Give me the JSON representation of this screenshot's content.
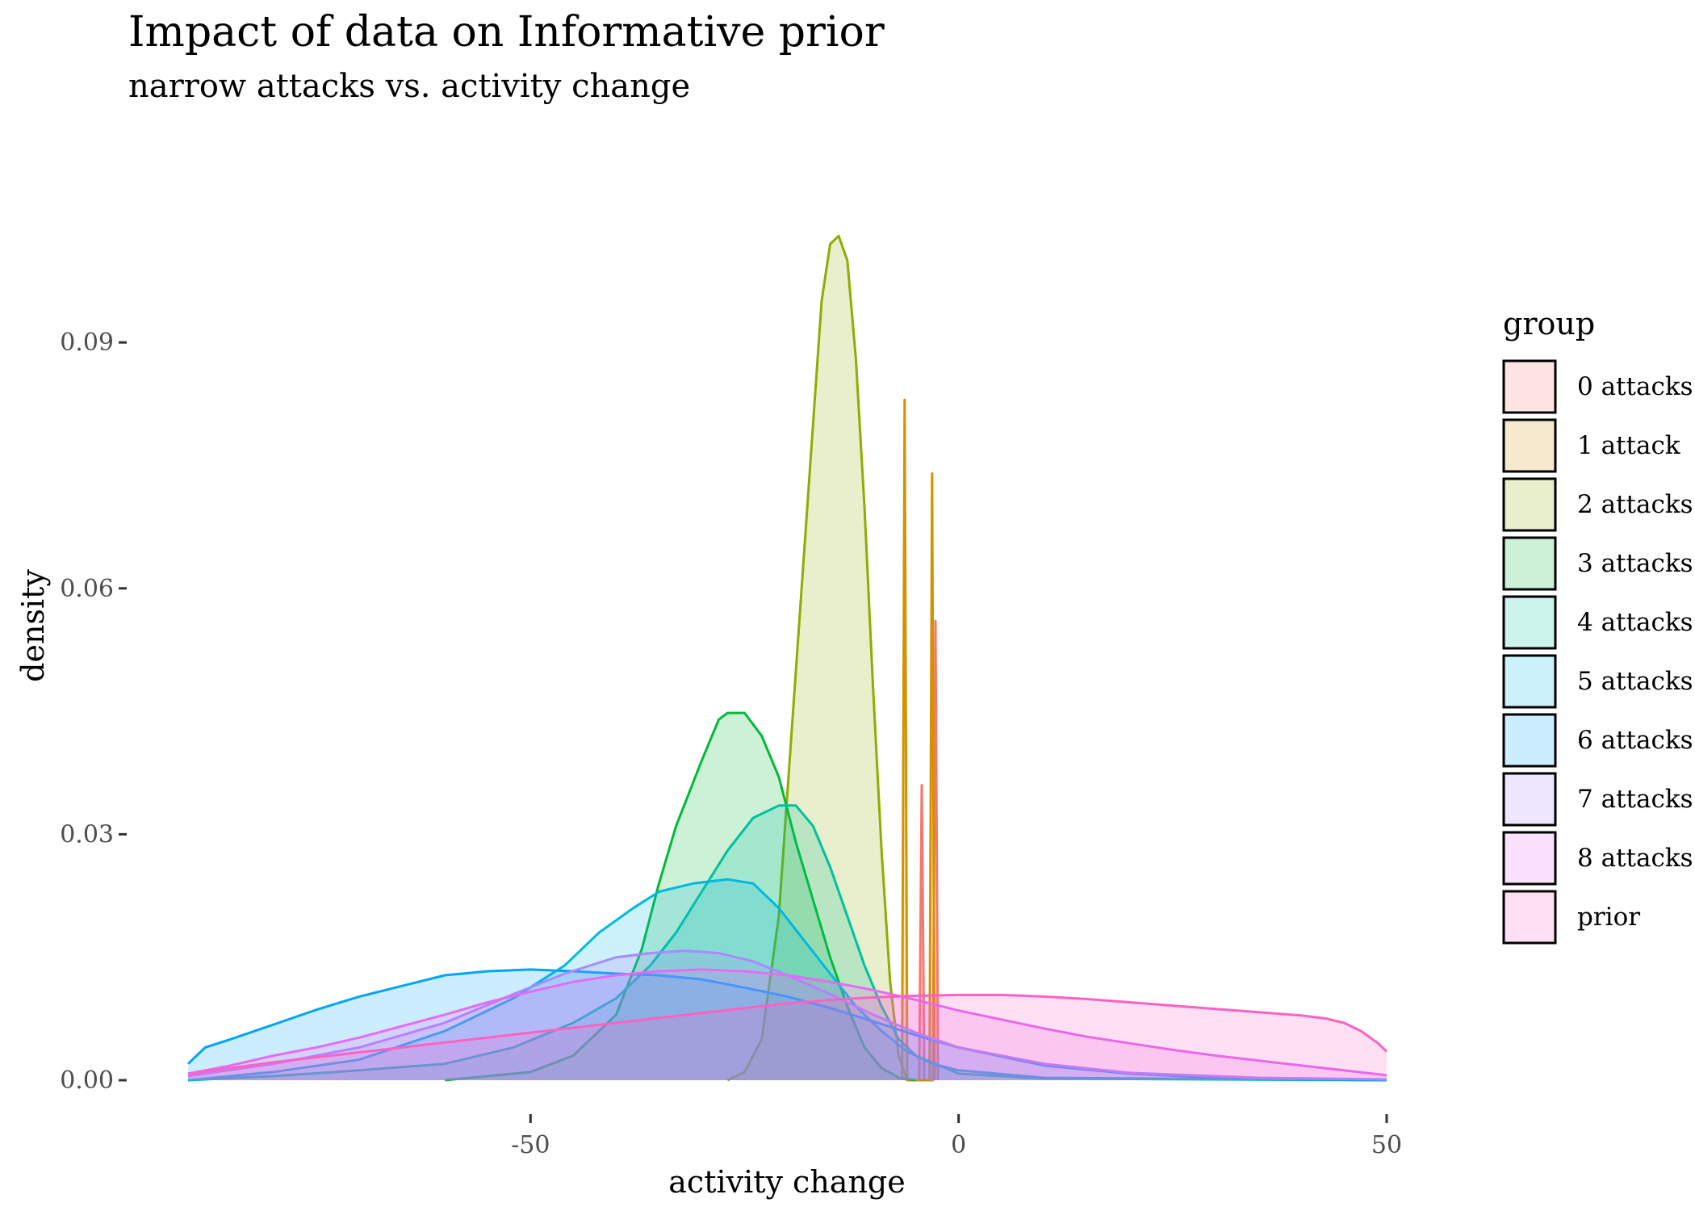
{
  "chart_data": {
    "type": "area",
    "title": "Impact of data on Informative prior",
    "subtitle": "narrow attacks vs. activity change",
    "xlabel": "activity change",
    "ylabel": "density",
    "xlim": [
      -90,
      50
    ],
    "ylim": [
      0,
      0.104
    ],
    "x_ticks": [
      -50,
      0,
      50
    ],
    "x_tick_labels": [
      "-50",
      "0",
      "50"
    ],
    "y_ticks": [
      0,
      0.03,
      0.06,
      0.09
    ],
    "y_tick_labels": [
      "0.00",
      "0.03",
      "0.06",
      "0.09"
    ],
    "grid": false,
    "legend": {
      "title": "group",
      "position": "right"
    },
    "series": [
      {
        "name": "0 attacks",
        "color": "#F8766D",
        "points": [
          [
            -4.6,
            0
          ],
          [
            -4.3,
            0.036
          ],
          [
            -4.0,
            0
          ],
          [
            -3.0,
            0
          ],
          [
            -2.7,
            0.056
          ],
          [
            -2.4,
            0
          ]
        ]
      },
      {
        "name": "1 attack",
        "color": "#D39200",
        "points": [
          [
            -6.6,
            0
          ],
          [
            -6.3,
            0.083
          ],
          [
            -6.0,
            0
          ],
          [
            -3.4,
            0
          ],
          [
            -3.1,
            0.074
          ],
          [
            -2.8,
            0
          ]
        ]
      },
      {
        "name": "2 attacks",
        "color": "#93AA00",
        "points": [
          [
            -27,
            0
          ],
          [
            -25,
            0.001
          ],
          [
            -23,
            0.005
          ],
          [
            -21,
            0.02
          ],
          [
            -19,
            0.05
          ],
          [
            -17,
            0.08
          ],
          [
            -16,
            0.095
          ],
          [
            -15,
            0.102
          ],
          [
            -14,
            0.103
          ],
          [
            -13,
            0.1
          ],
          [
            -12,
            0.088
          ],
          [
            -11,
            0.07
          ],
          [
            -10,
            0.048
          ],
          [
            -9,
            0.028
          ],
          [
            -8,
            0.012
          ],
          [
            -7,
            0.003
          ],
          [
            -6,
            0
          ]
        ]
      },
      {
        "name": "3 attacks",
        "color": "#00BA38",
        "points": [
          [
            -60,
            0
          ],
          [
            -55,
            0.0005
          ],
          [
            -50,
            0.001
          ],
          [
            -45,
            0.003
          ],
          [
            -40,
            0.008
          ],
          [
            -37,
            0.016
          ],
          [
            -35,
            0.024
          ],
          [
            -33,
            0.031
          ],
          [
            -30,
            0.039
          ],
          [
            -28,
            0.044
          ],
          [
            -27,
            0.0448
          ],
          [
            -25,
            0.0448
          ],
          [
            -23,
            0.042
          ],
          [
            -21,
            0.037
          ],
          [
            -19,
            0.029
          ],
          [
            -17,
            0.022
          ],
          [
            -15,
            0.015
          ],
          [
            -13,
            0.009
          ],
          [
            -11,
            0.004
          ],
          [
            -9,
            0.0015
          ],
          [
            -7,
            0.0003
          ],
          [
            -5,
            0
          ]
        ]
      },
      {
        "name": "4 attacks",
        "color": "#00C19F",
        "points": [
          [
            -90,
            0
          ],
          [
            -80,
            0.0005
          ],
          [
            -70,
            0.0012
          ],
          [
            -60,
            0.002
          ],
          [
            -52,
            0.004
          ],
          [
            -45,
            0.007
          ],
          [
            -40,
            0.01
          ],
          [
            -36,
            0.014
          ],
          [
            -33,
            0.018
          ],
          [
            -30,
            0.023
          ],
          [
            -27,
            0.028
          ],
          [
            -24,
            0.032
          ],
          [
            -21,
            0.0335
          ],
          [
            -19,
            0.0335
          ],
          [
            -17,
            0.031
          ],
          [
            -15,
            0.026
          ],
          [
            -13,
            0.02
          ],
          [
            -11,
            0.014
          ],
          [
            -9,
            0.009
          ],
          [
            -7,
            0.005
          ],
          [
            -5,
            0.003
          ],
          [
            0,
            0.0008
          ],
          [
            10,
            0.0002
          ],
          [
            50,
            0
          ]
        ]
      },
      {
        "name": "5 attacks",
        "color": "#00B9E3",
        "points": [
          [
            -90,
            0
          ],
          [
            -80,
            0.001
          ],
          [
            -70,
            0.0025
          ],
          [
            -60,
            0.006
          ],
          [
            -52,
            0.01
          ],
          [
            -46,
            0.014
          ],
          [
            -42,
            0.018
          ],
          [
            -38,
            0.021
          ],
          [
            -35,
            0.023
          ],
          [
            -31,
            0.024
          ],
          [
            -27,
            0.0245
          ],
          [
            -24,
            0.024
          ],
          [
            -21,
            0.021
          ],
          [
            -18,
            0.017
          ],
          [
            -15,
            0.013
          ],
          [
            -12,
            0.009
          ],
          [
            -9,
            0.006
          ],
          [
            -6,
            0.0035
          ],
          [
            -3,
            0.002
          ],
          [
            0,
            0.0012
          ],
          [
            10,
            0.0003
          ],
          [
            50,
            0
          ]
        ]
      },
      {
        "name": "6 attacks",
        "color": "#00A5FF",
        "points": [
          [
            -90,
            0.002
          ],
          [
            -88,
            0.004
          ],
          [
            -85,
            0.005
          ],
          [
            -80,
            0.0068
          ],
          [
            -75,
            0.0086
          ],
          [
            -70,
            0.0102
          ],
          [
            -65,
            0.0115
          ],
          [
            -60,
            0.0128
          ],
          [
            -55,
            0.0133
          ],
          [
            -50,
            0.0135
          ],
          [
            -45,
            0.0133
          ],
          [
            -40,
            0.013
          ],
          [
            -35,
            0.0128
          ],
          [
            -30,
            0.0123
          ],
          [
            -25,
            0.0113
          ],
          [
            -20,
            0.0102
          ],
          [
            -15,
            0.0088
          ],
          [
            -10,
            0.0072
          ],
          [
            -5,
            0.0055
          ],
          [
            0,
            0.004
          ],
          [
            10,
            0.0018
          ],
          [
            20,
            0.0008
          ],
          [
            30,
            0.0003
          ],
          [
            40,
            0.0001
          ],
          [
            50,
            0
          ]
        ]
      },
      {
        "name": "7 attacks",
        "color": "#AC88FF",
        "points": [
          [
            -90,
            0.0005
          ],
          [
            -80,
            0.002
          ],
          [
            -70,
            0.004
          ],
          [
            -60,
            0.007
          ],
          [
            -52,
            0.0105
          ],
          [
            -46,
            0.013
          ],
          [
            -40,
            0.015
          ],
          [
            -36,
            0.0155
          ],
          [
            -32,
            0.0158
          ],
          [
            -28,
            0.0155
          ],
          [
            -24,
            0.0145
          ],
          [
            -20,
            0.0128
          ],
          [
            -15,
            0.0105
          ],
          [
            -10,
            0.008
          ],
          [
            -5,
            0.0058
          ],
          [
            0,
            0.004
          ],
          [
            10,
            0.002
          ],
          [
            20,
            0.0009
          ],
          [
            35,
            0.0003
          ],
          [
            50,
            0.0001
          ]
        ]
      },
      {
        "name": "8 attacks",
        "color": "#E76BF3",
        "points": [
          [
            -90,
            0.0008
          ],
          [
            -85,
            0.0018
          ],
          [
            -80,
            0.003
          ],
          [
            -75,
            0.004
          ],
          [
            -70,
            0.0052
          ],
          [
            -65,
            0.0066
          ],
          [
            -60,
            0.008
          ],
          [
            -55,
            0.0095
          ],
          [
            -50,
            0.0108
          ],
          [
            -45,
            0.012
          ],
          [
            -40,
            0.0128
          ],
          [
            -35,
            0.0133
          ],
          [
            -30,
            0.0135
          ],
          [
            -25,
            0.0133
          ],
          [
            -20,
            0.0128
          ],
          [
            -15,
            0.012
          ],
          [
            -10,
            0.011
          ],
          [
            -5,
            0.0098
          ],
          [
            0,
            0.0085
          ],
          [
            5,
            0.0074
          ],
          [
            10,
            0.0063
          ],
          [
            15,
            0.0053
          ],
          [
            20,
            0.0045
          ],
          [
            25,
            0.0037
          ],
          [
            30,
            0.003
          ],
          [
            35,
            0.0024
          ],
          [
            40,
            0.0018
          ],
          [
            45,
            0.0012
          ],
          [
            50,
            0.0006
          ]
        ]
      },
      {
        "name": "prior",
        "color": "#FF61C3",
        "points": [
          [
            -90,
            0.0008
          ],
          [
            -85,
            0.0015
          ],
          [
            -80,
            0.0022
          ],
          [
            -75,
            0.0028
          ],
          [
            -70,
            0.0034
          ],
          [
            -65,
            0.004
          ],
          [
            -60,
            0.0046
          ],
          [
            -55,
            0.0052
          ],
          [
            -50,
            0.0058
          ],
          [
            -45,
            0.0064
          ],
          [
            -40,
            0.007
          ],
          [
            -35,
            0.0076
          ],
          [
            -30,
            0.0082
          ],
          [
            -25,
            0.0088
          ],
          [
            -20,
            0.0094
          ],
          [
            -15,
            0.0098
          ],
          [
            -10,
            0.0101
          ],
          [
            -5,
            0.0103
          ],
          [
            0,
            0.0104
          ],
          [
            5,
            0.0104
          ],
          [
            10,
            0.0102
          ],
          [
            15,
            0.0099
          ],
          [
            20,
            0.0095
          ],
          [
            25,
            0.0091
          ],
          [
            30,
            0.0087
          ],
          [
            35,
            0.0083
          ],
          [
            40,
            0.0079
          ],
          [
            43,
            0.0075
          ],
          [
            45,
            0.007
          ],
          [
            47,
            0.006
          ],
          [
            49,
            0.0045
          ],
          [
            50,
            0.0035
          ]
        ]
      }
    ]
  }
}
